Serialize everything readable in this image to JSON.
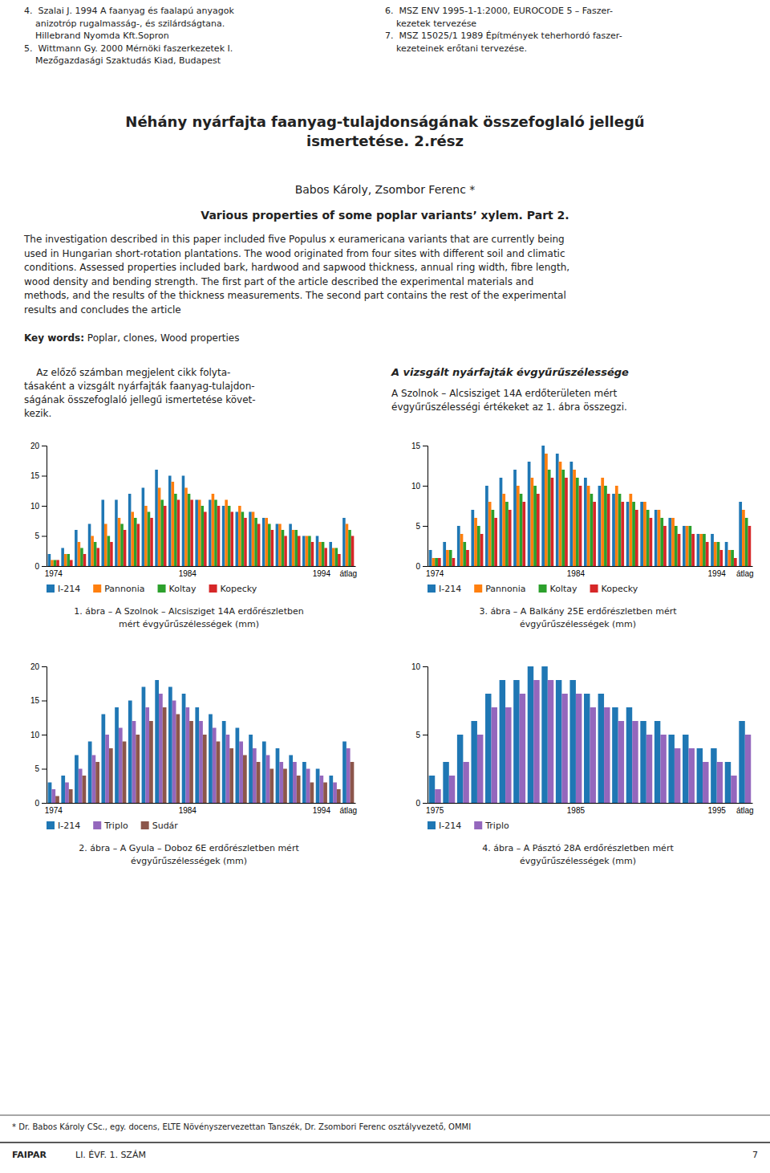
{
  "references_left": [
    "4.  Szalai J. 1994 A faanyag és faalapú anyagok",
    "    anizotróp rugalmasság-, és szilárdságtana.",
    "    Hillebrand Nyomda Kft.Sopron",
    "5.  Wittmann Gy. 2000 Mérnöki faszerkezetek I.",
    "    Mezőgazdasági Szaktudás Kiad, Budapest"
  ],
  "references_right": [
    "6.  MSZ ENV 1995-1-1:2000, EUROCODE 5 – Faszer-",
    "    kezetek tervezése",
    "7.  MSZ 15025/1 1989 Építmények teherhordó faszer-",
    "    kezeteinek erőtani tervezése."
  ],
  "title": [
    "Néhány nyárfajta faanyag-tulajdonságának összefoglaló jellegű",
    "ismertetése. 2.rész"
  ],
  "authors": "Babos Károly, Zsombor Ferenc *",
  "subtitle": "Various properties of some poplar variants’ xylem. Part 2.",
  "abstract": [
    "The investigation described in this paper included five Populus x euramericana variants that are currently being",
    "used in Hungarian short-rotation plantations. The wood originated from four sites with different soil and climatic",
    "conditions. Assessed properties included bark, hardwood and sapwood thickness, annual ring width, fibre length,",
    "wood density and bending strength. The first part of the article described the experimental materials and",
    "methods, and the results of the thickness measurements. The second part contains the rest of the experimental",
    "results and concludes the article"
  ],
  "keywords_label": "Key words:",
  "keywords": " Poplar, clones, Wood properties",
  "text_left": [
    "    Az előző számban megjelent cikk folyta-",
    "tásaként a vizsgált nyárfajták faanyag-tulajdon-",
    "ságának összefoglaló jellegű ismertetése követ-",
    "kezik."
  ],
  "text_right_title": "A vizsgált nyárfajták évgyűrűszélessége",
  "text_right": [
    "A Szolnok – Alcsisziget 14A erdőterületen mért",
    "évgyűrűszélességi értékeket az 1. ábra összegzi."
  ],
  "footnote": "* Dr. Babos Károly CSc., egy. docens, ELTE Növényszervezettan Tanszék, Dr. Zsombori Ferenc osztályvezető, OMMI",
  "footer_journal": "FAIPAR",
  "footer_issue": "LI. ÉVF. 1. SZÁM",
  "footer_page": "7",
  "chart_data": [
    {
      "type": "bar",
      "title": "1. ábra – A Szolnok – Alcsisziget 14A erdőrészletben",
      "subtitle": "mért évgyűrűszélességek (mm)",
      "categories": [
        "1974",
        null,
        null,
        null,
        null,
        null,
        null,
        null,
        null,
        null,
        "1984",
        null,
        null,
        null,
        null,
        null,
        null,
        null,
        null,
        null,
        "1994",
        null,
        "átlag"
      ],
      "series": [
        {
          "name": "I-214",
          "values": [
            2,
            3,
            6,
            7,
            11,
            11,
            12,
            13,
            16,
            15,
            15,
            11,
            11,
            10,
            9,
            9,
            8,
            7,
            7,
            5,
            5,
            4,
            8
          ]
        },
        {
          "name": "Pannonia",
          "values": [
            1,
            2,
            4,
            5,
            7,
            8,
            9,
            10,
            13,
            14,
            13,
            11,
            12,
            11,
            10,
            9,
            8,
            7,
            6,
            5,
            4,
            3,
            7
          ]
        },
        {
          "name": "Koltay",
          "values": [
            1,
            2,
            3,
            4,
            5,
            7,
            8,
            9,
            11,
            12,
            12,
            10,
            11,
            10,
            9,
            8,
            7,
            6,
            6,
            5,
            4,
            3,
            6
          ]
        },
        {
          "name": "Kopecky",
          "values": [
            1,
            1,
            2,
            3,
            4,
            6,
            7,
            8,
            10,
            11,
            11,
            9,
            10,
            9,
            8,
            7,
            6,
            5,
            5,
            4,
            3,
            2,
            5
          ]
        }
      ],
      "ylim": [
        0,
        20
      ],
      "yticks": [
        0,
        5,
        10,
        15,
        20
      ],
      "grid": false,
      "legend": "bottom"
    },
    {
      "type": "bar",
      "title": "2. ábra – A Gyula – Doboz 6E erdőrészletben mért",
      "subtitle": "évgyűrűszélességek (mm)",
      "categories": [
        "1974",
        null,
        null,
        null,
        null,
        null,
        null,
        null,
        null,
        null,
        "1984",
        null,
        null,
        null,
        null,
        null,
        null,
        null,
        null,
        null,
        "1994",
        null,
        "átlag"
      ],
      "series": [
        {
          "name": "I-214",
          "values": [
            3,
            4,
            7,
            9,
            13,
            14,
            15,
            17,
            18,
            17,
            16,
            14,
            13,
            12,
            11,
            10,
            9,
            8,
            7,
            6,
            5,
            4,
            9
          ]
        },
        {
          "name": "Triplo",
          "values": [
            2,
            3,
            5,
            7,
            10,
            11,
            12,
            14,
            16,
            15,
            14,
            12,
            11,
            10,
            9,
            8,
            7,
            6,
            6,
            5,
            4,
            3,
            8
          ]
        },
        {
          "name": "Sudár",
          "values": [
            1,
            2,
            4,
            6,
            8,
            9,
            10,
            12,
            14,
            13,
            12,
            10,
            9,
            8,
            7,
            6,
            5,
            5,
            4,
            3,
            3,
            2,
            6
          ]
        }
      ],
      "ylim": [
        0,
        20
      ],
      "yticks": [
        0,
        5,
        10,
        15,
        20
      ],
      "grid": false,
      "legend": "bottom"
    },
    {
      "type": "bar",
      "title": "3. ábra – A Balkány 25E erdőrészletben mért",
      "subtitle": "évgyűrűszélességek (mm)",
      "categories": [
        "1974",
        null,
        null,
        null,
        null,
        null,
        null,
        null,
        null,
        null,
        "1984",
        null,
        null,
        null,
        null,
        null,
        null,
        null,
        null,
        null,
        "1994",
        null,
        "átlag"
      ],
      "series": [
        {
          "name": "I-214",
          "values": [
            2,
            3,
            5,
            7,
            10,
            11,
            12,
            13,
            15,
            14,
            13,
            11,
            10,
            9,
            8,
            8,
            7,
            6,
            5,
            4,
            4,
            3,
            8
          ]
        },
        {
          "name": "Pannonia",
          "values": [
            1,
            2,
            4,
            6,
            8,
            9,
            10,
            11,
            14,
            13,
            12,
            10,
            11,
            10,
            9,
            8,
            7,
            6,
            5,
            4,
            3,
            2,
            7
          ]
        },
        {
          "name": "Koltay",
          "values": [
            1,
            2,
            3,
            5,
            7,
            8,
            9,
            10,
            12,
            12,
            11,
            9,
            10,
            9,
            8,
            7,
            6,
            5,
            5,
            4,
            3,
            2,
            6
          ]
        },
        {
          "name": "Kopecky",
          "values": [
            1,
            1,
            2,
            4,
            6,
            7,
            8,
            9,
            11,
            11,
            10,
            8,
            9,
            8,
            7,
            6,
            5,
            4,
            4,
            3,
            2,
            1,
            5
          ]
        }
      ],
      "ylim": [
        0,
        15
      ],
      "yticks": [
        0,
        5,
        10,
        15
      ],
      "grid": false,
      "legend": "bottom"
    },
    {
      "type": "bar",
      "title": "4. ábra – A Pásztó 28A erdőrészletben mért",
      "subtitle": "évgyűrűszélességek (mm)",
      "categories": [
        "1975",
        null,
        null,
        null,
        null,
        null,
        null,
        null,
        null,
        null,
        "1985",
        null,
        null,
        null,
        null,
        null,
        null,
        null,
        null,
        null,
        "1995",
        null,
        "átlag"
      ],
      "series": [
        {
          "name": "I-214",
          "values": [
            2,
            3,
            5,
            6,
            8,
            9,
            9,
            10,
            10,
            9,
            9,
            8,
            8,
            7,
            7,
            6,
            6,
            5,
            5,
            4,
            4,
            3,
            6
          ]
        },
        {
          "name": "Triplo",
          "values": [
            1,
            2,
            3,
            5,
            7,
            7,
            8,
            9,
            9,
            8,
            8,
            7,
            7,
            6,
            6,
            5,
            5,
            4,
            4,
            3,
            3,
            2,
            5
          ]
        }
      ],
      "ylim": [
        0,
        10
      ],
      "yticks": [
        0,
        5,
        10
      ],
      "grid": false,
      "legend": "bottom"
    }
  ]
}
